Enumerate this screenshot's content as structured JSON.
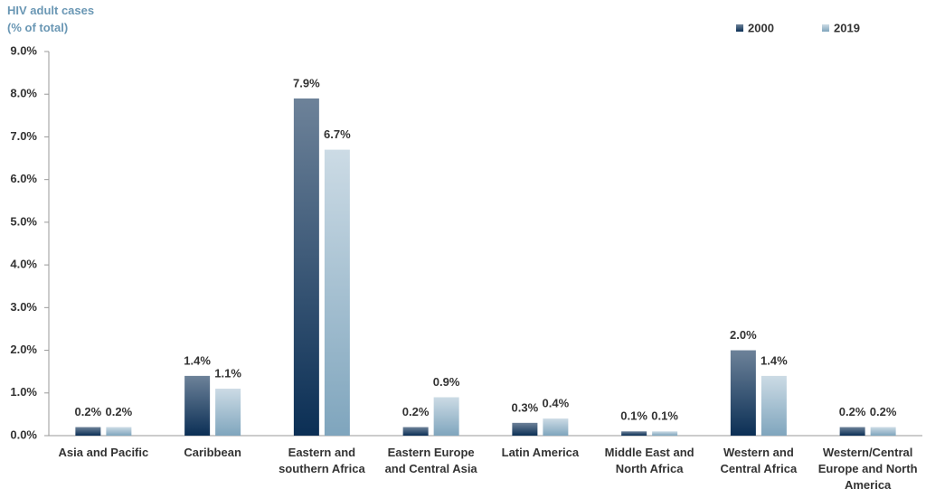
{
  "chart_data": {
    "type": "bar",
    "title": "HIV adult cases",
    "subtitle": "(% of total)",
    "categories": [
      "Asia and Pacific",
      "Caribbean",
      "Eastern and southern Africa",
      "Eastern Europe and Central Asia",
      "Latin America",
      "Middle East and North Africa",
      "Western and Central Africa",
      "Western/Central Europe and North America"
    ],
    "series": [
      {
        "name": "2000",
        "color": "#0b2f55",
        "values": [
          0.2,
          1.4,
          7.9,
          0.2,
          0.3,
          0.1,
          2.0,
          0.2
        ],
        "value_labels": [
          "0.2%",
          "1.4%",
          "7.9%",
          "0.2%",
          "0.3%",
          "0.1%",
          "2.0%",
          "0.2%"
        ]
      },
      {
        "name": "2019",
        "color": "#7fa5bd",
        "values": [
          0.2,
          1.1,
          6.7,
          0.9,
          0.4,
          0.1,
          1.4,
          0.2
        ],
        "value_labels": [
          "0.2%",
          "1.1%",
          "6.7%",
          "0.9%",
          "0.4%",
          "0.1%",
          "1.4%",
          "0.2%"
        ]
      }
    ],
    "ylim": [
      0,
      9
    ],
    "yticks": [
      {
        "value": 0,
        "label": "0.0%"
      },
      {
        "value": 1,
        "label": "1.0%"
      },
      {
        "value": 2,
        "label": "2.0%"
      },
      {
        "value": 3,
        "label": "3.0%"
      },
      {
        "value": 4,
        "label": "4.0%"
      },
      {
        "value": 5,
        "label": "5.0%"
      },
      {
        "value": 6,
        "label": "6.0%"
      },
      {
        "value": 7,
        "label": "7.0%"
      },
      {
        "value": 8,
        "label": "8.0%"
      },
      {
        "value": 9,
        "label": "9.0%"
      }
    ],
    "legend": "top-right"
  }
}
